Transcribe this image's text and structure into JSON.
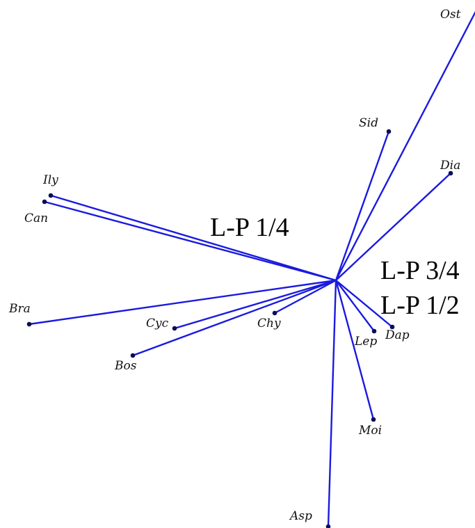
{
  "colors": {
    "ray": "#1a1adf",
    "tip": "#0d0d55",
    "text": "#111111"
  },
  "taxa": [
    {
      "label": "Ost"
    },
    {
      "label": "Sid"
    },
    {
      "label": "Dia"
    },
    {
      "label": "Ily"
    },
    {
      "label": "Can"
    },
    {
      "label": "Bra"
    },
    {
      "label": "Cyc"
    },
    {
      "label": "Chy"
    },
    {
      "label": "Bos"
    },
    {
      "label": "Lep"
    },
    {
      "label": "Dap"
    },
    {
      "label": "Moi"
    },
    {
      "label": "Asp"
    }
  ],
  "regions": [
    {
      "label": "L-P 1/4"
    },
    {
      "label": "L-P 3/4"
    },
    {
      "label": "L-P 1/2"
    }
  ]
}
